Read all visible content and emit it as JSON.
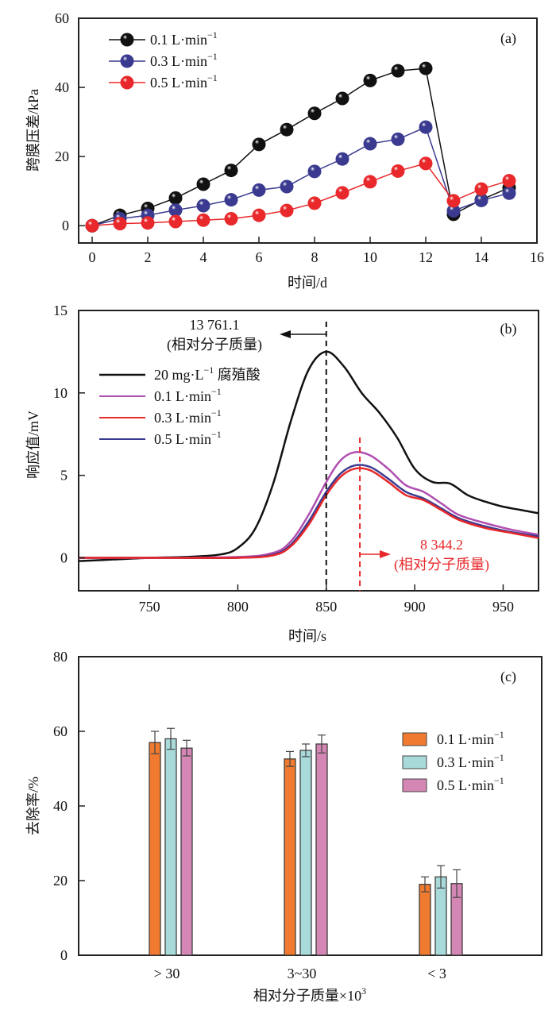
{
  "chart_data": [
    {
      "type": "line",
      "panel_label": "(a)",
      "xlabel": "时间/d",
      "ylabel": "跨膜压差/kPa",
      "xlim": [
        -0.5,
        16
      ],
      "ylim": [
        -5,
        60
      ],
      "xticks": [
        0,
        2,
        4,
        6,
        8,
        10,
        12,
        14,
        16
      ],
      "yticks": [
        0,
        20,
        40,
        60
      ],
      "grid": false,
      "legend_position": "top-left",
      "marker": "sphere",
      "x": [
        0,
        1,
        2,
        3,
        4,
        5,
        6,
        7,
        8,
        9,
        10,
        11,
        12,
        13,
        14,
        15
      ],
      "series": [
        {
          "name": "0.1 L·min⁻¹",
          "label_main": "0.1 L·min",
          "label_sup": "−1",
          "color": "#111111",
          "values": [
            0,
            3.0,
            5.0,
            8.0,
            12.0,
            16.0,
            23.5,
            27.8,
            32.5,
            36.8,
            42.0,
            44.8,
            45.5,
            3.3,
            7.5,
            11.0
          ]
        },
        {
          "name": "0.3 L·min⁻¹",
          "label_main": "0.3 L·min",
          "label_sup": "−1",
          "color": "#3a3a90",
          "values": [
            0,
            2.0,
            3.0,
            4.5,
            5.8,
            7.5,
            10.3,
            11.3,
            15.7,
            19.3,
            23.7,
            25.0,
            28.5,
            4.3,
            7.3,
            9.4
          ]
        },
        {
          "name": "0.5 L·min⁻¹",
          "label_main": "0.5 L·min",
          "label_sup": "−1",
          "color": "#e8282a",
          "values": [
            0,
            0.6,
            0.8,
            1.2,
            1.6,
            2.0,
            3.0,
            4.4,
            6.5,
            9.5,
            12.7,
            15.8,
            18.0,
            7.2,
            10.6,
            13.0
          ]
        }
      ]
    },
    {
      "type": "line",
      "panel_label": "(b)",
      "xlabel": "时间/s",
      "ylabel": "响应值/mV",
      "xlim": [
        710,
        970
      ],
      "ylim": [
        -2,
        15
      ],
      "xticks": [
        750,
        800,
        850,
        900,
        950
      ],
      "yticks": [
        0,
        5,
        10,
        15
      ],
      "grid": false,
      "legend_position": "top-left",
      "series": [
        {
          "name": "20 mg·L⁻¹ 腐殖酸",
          "label_main": "20 mg·L",
          "label_sup": "−1",
          "label_tail": " 腐殖酸",
          "color": "#111111",
          "x": [
            710,
            730,
            750,
            770,
            790,
            800,
            810,
            820,
            830,
            840,
            850,
            860,
            870,
            880,
            890,
            900,
            910,
            920,
            930,
            940,
            950,
            960,
            970
          ],
          "values": [
            -0.2,
            -0.1,
            0.0,
            0.05,
            0.2,
            0.6,
            1.8,
            4.5,
            8.3,
            11.4,
            12.5,
            11.6,
            10.0,
            8.8,
            7.3,
            5.4,
            4.6,
            4.5,
            3.8,
            3.4,
            3.1,
            2.9,
            2.7
          ]
        },
        {
          "name": "0.1 L·min⁻¹",
          "label_main": "0.1 L·min",
          "label_sup": "−1",
          "color": "#b04fb0",
          "x": [
            710,
            750,
            800,
            820,
            830,
            840,
            850,
            858,
            866,
            875,
            885,
            895,
            905,
            915,
            925,
            940,
            955,
            970
          ],
          "values": [
            0.0,
            0.0,
            0.05,
            0.3,
            1.0,
            2.6,
            4.6,
            5.9,
            6.4,
            6.2,
            5.4,
            4.4,
            4.0,
            3.3,
            2.6,
            2.1,
            1.7,
            1.4
          ]
        },
        {
          "name": "0.3 L·min⁻¹",
          "label_main": "0.3 L·min",
          "label_sup": "−1",
          "color": "#e8282a",
          "x": [
            710,
            750,
            800,
            820,
            830,
            840,
            850,
            858,
            866,
            875,
            885,
            895,
            905,
            915,
            925,
            940,
            955,
            970
          ],
          "values": [
            0.0,
            0.0,
            0.0,
            0.15,
            0.7,
            2.0,
            3.8,
            4.9,
            5.4,
            5.3,
            4.6,
            3.8,
            3.5,
            2.9,
            2.3,
            1.8,
            1.5,
            1.2
          ]
        },
        {
          "name": "0.5 L·min⁻¹",
          "label_main": "0.5 L·min",
          "label_sup": "−1",
          "color": "#3a3a90",
          "x": [
            710,
            750,
            800,
            820,
            830,
            840,
            850,
            858,
            866,
            875,
            885,
            895,
            905,
            915,
            925,
            940,
            955,
            970
          ],
          "values": [
            0.0,
            0.0,
            0.0,
            0.2,
            0.8,
            2.2,
            4.0,
            5.1,
            5.6,
            5.5,
            4.8,
            4.0,
            3.6,
            3.0,
            2.4,
            1.9,
            1.55,
            1.3
          ]
        }
      ],
      "annotations": [
        {
          "name": "black-peak-marker",
          "x": 850,
          "text_line1": "13 761.1",
          "text_line2": "(相对分子质量)",
          "color": "#111111",
          "arrow": "left"
        },
        {
          "name": "red-peak-marker",
          "x": 869,
          "text_line1": "8 344.2",
          "text_line2": "(相对分子质量)",
          "color": "#e8282a",
          "arrow": "right"
        }
      ]
    },
    {
      "type": "bar",
      "panel_label": "(c)",
      "xlabel": "相对分子质量×10",
      "xlabel_sup": "3",
      "ylabel": "去除率/%",
      "categories": [
        "> 30",
        "3~30",
        "< 3"
      ],
      "ylim": [
        0,
        80
      ],
      "yticks": [
        0,
        20,
        40,
        60,
        80
      ],
      "grid": false,
      "legend_position": "right",
      "series": [
        {
          "name": "0.1 L·min⁻¹",
          "label_main": "0.1 L·min",
          "label_sup": "−1",
          "color": "#f07b30",
          "values": [
            57.0,
            52.6,
            19.0
          ],
          "errors": [
            3.0,
            2.0,
            2.0
          ]
        },
        {
          "name": "0.3 L·min⁻¹",
          "label_main": "0.3 L·min",
          "label_sup": "−1",
          "color": "#a8dada",
          "values": [
            58.0,
            54.9,
            21.0
          ],
          "errors": [
            2.8,
            1.7,
            3.0
          ]
        },
        {
          "name": "0.5 L·min⁻¹",
          "label_main": "0.5 L·min",
          "label_sup": "−1",
          "color": "#d486b4",
          "values": [
            55.5,
            56.6,
            19.2
          ],
          "errors": [
            2.1,
            2.4,
            3.7
          ]
        }
      ]
    }
  ]
}
